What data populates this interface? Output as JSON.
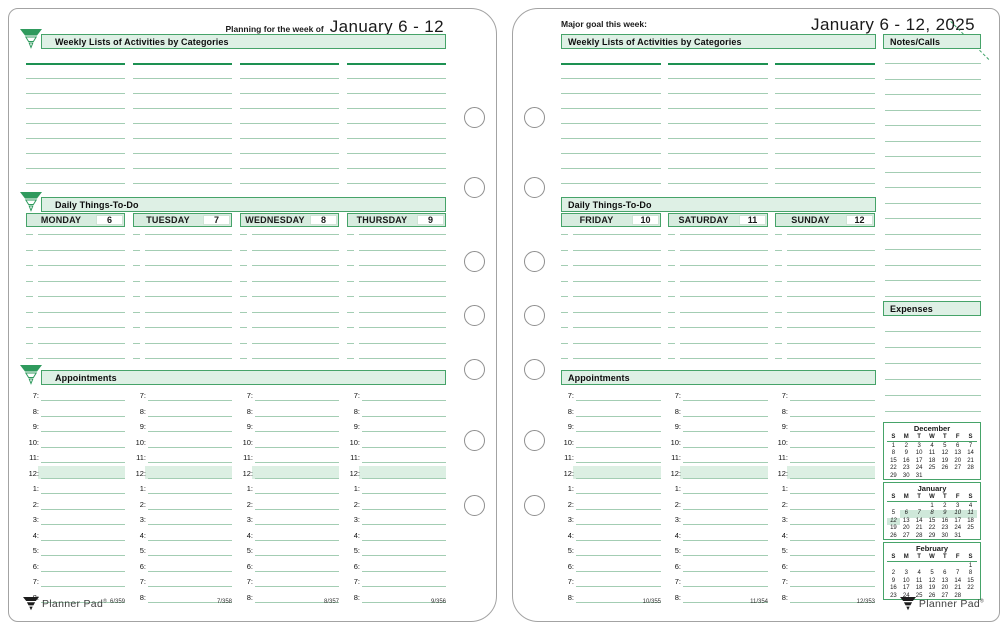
{
  "brand": {
    "logo_text": "Planner Pad",
    "logo_mark": "®"
  },
  "colors": {
    "accent_green": "#2f9a5d",
    "band_fill": "#def0e5",
    "rule_line": "#a3cdb3",
    "dark_rule": "#1d9152",
    "noon_highlight": "#dcefe3",
    "calendar_highlight": "#cfe8da"
  },
  "left_page": {
    "header": {
      "prefix": "Planning for the week of",
      "date": "January 6 - 12"
    },
    "weekly_band": "Weekly Lists of Activities by Categories",
    "daily_band": "Daily Things-To-Do",
    "appointments_band": "Appointments",
    "days": [
      {
        "name": "MONDAY",
        "date": "6",
        "page_num": "6/359"
      },
      {
        "name": "TUESDAY",
        "date": "7",
        "page_num": "7/358"
      },
      {
        "name": "WEDNESDAY",
        "date": "8",
        "page_num": "8/357"
      },
      {
        "name": "THURSDAY",
        "date": "9",
        "page_num": "9/356"
      }
    ]
  },
  "right_page": {
    "goal_label": "Major goal this week:",
    "header_date": "January 6 - 12, 2025",
    "weekly_band": "Weekly Lists of Activities by Categories",
    "notes_band": "Notes/Calls",
    "expenses_band": "Expenses",
    "daily_band": "Daily Things-To-Do",
    "appointments_band": "Appointments",
    "days": [
      {
        "name": "FRIDAY",
        "date": "10",
        "page_num": "10/355"
      },
      {
        "name": "SATURDAY",
        "date": "11",
        "page_num": "11/354"
      },
      {
        "name": "SUNDAY",
        "date": "12",
        "page_num": "12/353"
      }
    ]
  },
  "appointments": {
    "times": [
      "7",
      "8",
      "9",
      "10",
      "11",
      "12",
      "1",
      "2",
      "3",
      "4",
      "5",
      "6",
      "7",
      "8"
    ],
    "highlighted_time": "12",
    "highlighted_time_index": 5
  },
  "mini_calendars": [
    {
      "title": "December",
      "dow": [
        "S",
        "M",
        "T",
        "W",
        "T",
        "F",
        "S"
      ],
      "weeks": [
        [
          "1",
          "2",
          "3",
          "4",
          "5",
          "6",
          "7"
        ],
        [
          "8",
          "9",
          "10",
          "11",
          "12",
          "13",
          "14"
        ],
        [
          "15",
          "16",
          "17",
          "18",
          "19",
          "20",
          "21"
        ],
        [
          "22",
          "23",
          "24",
          "25",
          "26",
          "27",
          "28"
        ],
        [
          "29",
          "30",
          "31",
          "",
          "",
          "",
          ""
        ]
      ],
      "highlight_days": []
    },
    {
      "title": "January",
      "dow": [
        "S",
        "M",
        "T",
        "W",
        "T",
        "F",
        "S"
      ],
      "weeks": [
        [
          "",
          "",
          "",
          "1",
          "2",
          "3",
          "4"
        ],
        [
          "5",
          "6",
          "7",
          "8",
          "9",
          "10",
          "11"
        ],
        [
          "12",
          "13",
          "14",
          "15",
          "16",
          "17",
          "18"
        ],
        [
          "19",
          "20",
          "21",
          "22",
          "23",
          "24",
          "25"
        ],
        [
          "26",
          "27",
          "28",
          "29",
          "30",
          "31",
          ""
        ]
      ],
      "highlight_days": [
        "6",
        "7",
        "8",
        "9",
        "10",
        "11",
        "12"
      ]
    },
    {
      "title": "February",
      "dow": [
        "S",
        "M",
        "T",
        "W",
        "T",
        "F",
        "S"
      ],
      "weeks": [
        [
          "",
          "",
          "",
          "",
          "",
          "",
          "1"
        ],
        [
          "2",
          "3",
          "4",
          "5",
          "6",
          "7",
          "8"
        ],
        [
          "9",
          "10",
          "11",
          "12",
          "13",
          "14",
          "15"
        ],
        [
          "16",
          "17",
          "18",
          "19",
          "20",
          "21",
          "22"
        ],
        [
          "23",
          "24",
          "25",
          "26",
          "27",
          "28",
          ""
        ]
      ],
      "highlight_days": []
    }
  ]
}
